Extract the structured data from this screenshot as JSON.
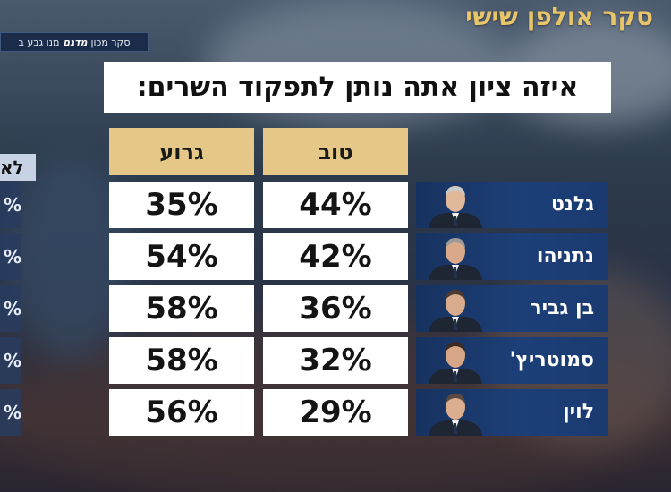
{
  "header": {
    "show_title": "סקר אולפן שישי",
    "source_prefix": "סקר מכון",
    "source_brand": "מדגם",
    "source_suffix": "מנו גבע ב"
  },
  "question": "איזה ציון אתה נותן לתפקוד השרים:",
  "side_column": {
    "header": "לא",
    "cells": [
      "%",
      "%",
      "%",
      "%",
      "%"
    ]
  },
  "chart_data": {
    "type": "table",
    "title": "איזה ציון אתה נותן לתפקוד השרים:",
    "columns": [
      "טוב",
      "גרוע"
    ],
    "rows": [
      {
        "name": "גלנט",
        "good": "44%",
        "bad": "35%"
      },
      {
        "name": "נתניהו",
        "good": "42%",
        "bad": "54%"
      },
      {
        "name": "בן גביר",
        "good": "36%",
        "bad": "58%"
      },
      {
        "name": "סמוטריץ'",
        "good": "32%",
        "bad": "58%"
      },
      {
        "name": "לוין",
        "good": "29%",
        "bad": "56%"
      }
    ],
    "series": [
      {
        "name": "טוב",
        "values": [
          44,
          42,
          36,
          32,
          29
        ]
      },
      {
        "name": "גרוע",
        "values": [
          35,
          54,
          58,
          58,
          56
        ]
      }
    ],
    "categories": [
      "גלנט",
      "נתניהו",
      "בן גביר",
      "סמוטריץ'",
      "לוין"
    ],
    "unit": "%"
  },
  "colors": {
    "header_gold": "#e5c787",
    "title_gold": "#e9c56a",
    "name_card_blue": "#1d3f78",
    "cell_white": "#ffffff"
  }
}
